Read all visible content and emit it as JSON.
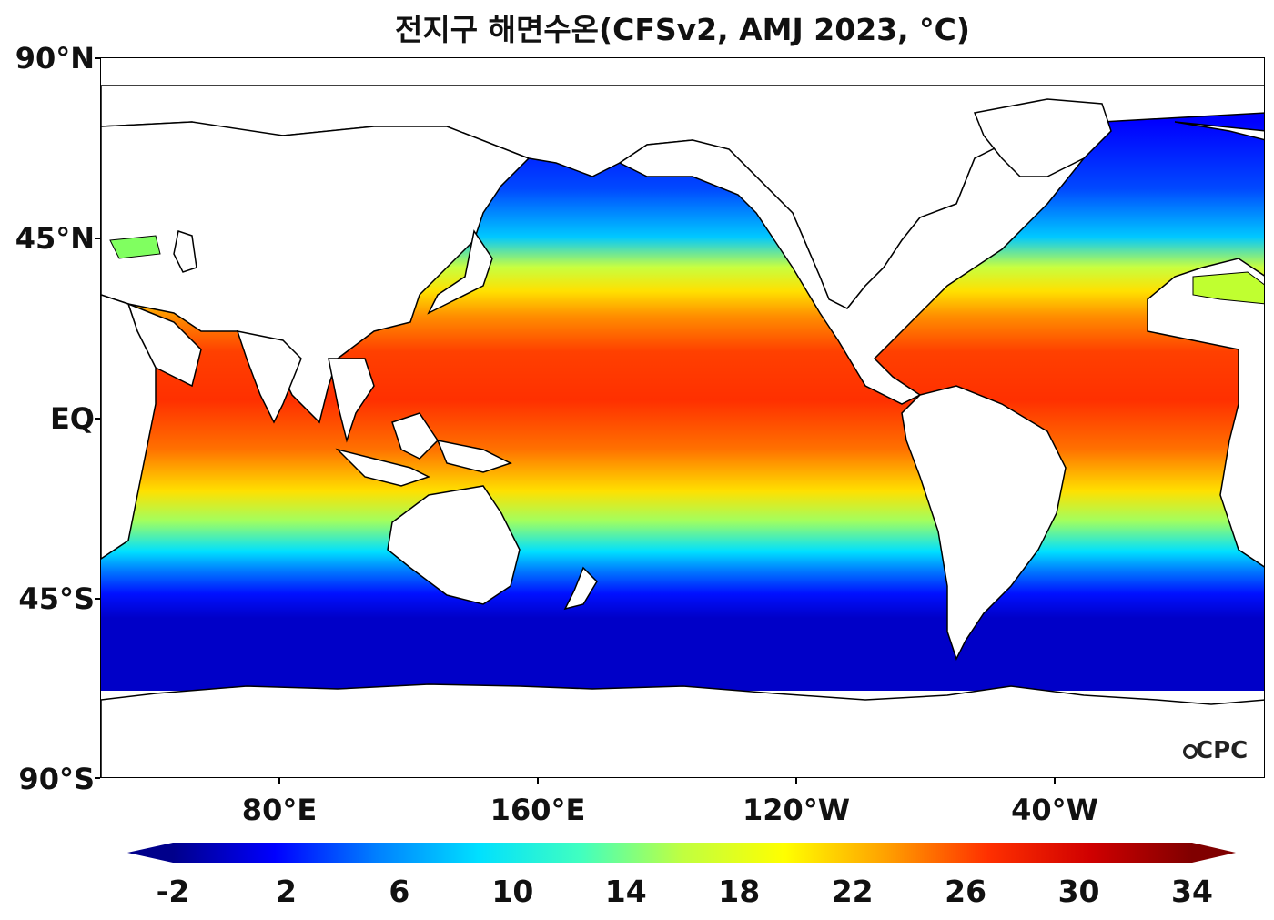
{
  "title": "전지구 해면수온(CFSv2, AMJ 2023, °C)",
  "axes": {
    "y_ticks": [
      "90°N",
      "45°N",
      "EQ",
      "45°S",
      "90°S"
    ],
    "x_ticks": [
      "80°E",
      "160°E",
      "120°W",
      "40°W"
    ]
  },
  "colorbar": {
    "labels": [
      "-2",
      "2",
      "6",
      "10",
      "14",
      "18",
      "22",
      "26",
      "30",
      "34"
    ],
    "min": -2,
    "max": 34,
    "colors": [
      "#00008b",
      "#0000ff",
      "#0080ff",
      "#00e0ff",
      "#40ffc0",
      "#c0ff40",
      "#ffff00",
      "#ffa000",
      "#ff3000",
      "#d00000",
      "#800000"
    ]
  },
  "logo": "CPC"
}
